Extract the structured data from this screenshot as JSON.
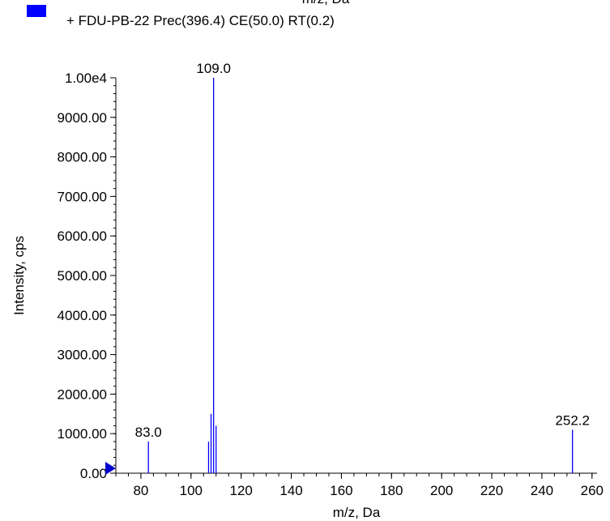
{
  "legend": {
    "swatch_color": "#0000ff",
    "entry": "+ FDU-PB-22 Prec(396.4) CE(50.0) RT(0.2)",
    "clipped_title": "m/z, Da"
  },
  "chart_data": {
    "type": "bar",
    "xlabel": "m/z, Da",
    "ylabel": "Intensity, cps",
    "xlim": [
      70,
      262
    ],
    "ylim": [
      0,
      10000
    ],
    "x_ticks": [
      80,
      100,
      120,
      140,
      160,
      180,
      200,
      220,
      240,
      260
    ],
    "y_ticks": [
      {
        "value": 0,
        "label": "0.00"
      },
      {
        "value": 1000,
        "label": "1000.00"
      },
      {
        "value": 2000,
        "label": "2000.00"
      },
      {
        "value": 3000,
        "label": "3000.00"
      },
      {
        "value": 4000,
        "label": "4000.00"
      },
      {
        "value": 5000,
        "label": "5000.00"
      },
      {
        "value": 6000,
        "label": "6000.00"
      },
      {
        "value": 7000,
        "label": "7000.00"
      },
      {
        "value": 8000,
        "label": "8000.00"
      },
      {
        "value": 9000,
        "label": "9000.00"
      },
      {
        "value": 10000,
        "label": "1.00e4"
      }
    ],
    "series": [
      {
        "name": "+ FDU-PB-22 Prec(396.4) CE(50.0) RT(0.2)",
        "color": "#0000ff",
        "peaks": [
          {
            "mz": 83.0,
            "intensity": 800
          },
          {
            "mz": 107.0,
            "intensity": 800
          },
          {
            "mz": 108.0,
            "intensity": 1500
          },
          {
            "mz": 109.0,
            "intensity": 10000
          },
          {
            "mz": 110.0,
            "intensity": 1200
          },
          {
            "mz": 252.2,
            "intensity": 1100
          }
        ]
      }
    ],
    "peak_labels": [
      {
        "mz": 83.0,
        "text": "83.0"
      },
      {
        "mz": 109.0,
        "text": "109.0"
      },
      {
        "mz": 252.2,
        "text": "252.2"
      }
    ],
    "marker_color": "#0000cc",
    "grid": false
  }
}
